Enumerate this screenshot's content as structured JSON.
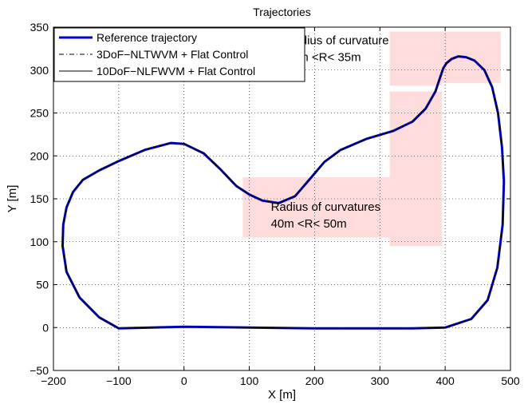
{
  "chart_data": {
    "type": "line",
    "title": "Trajectories",
    "xlabel": "X [m]",
    "ylabel": "Y [m]",
    "xlim": [
      -200,
      500
    ],
    "ylim": [
      -50,
      350
    ],
    "xticks": [
      -200,
      -100,
      0,
      100,
      200,
      300,
      400,
      500
    ],
    "yticks": [
      -50,
      0,
      50,
      100,
      150,
      200,
      250,
      300,
      350
    ],
    "xtick_labels": [
      "−200",
      "−100",
      "0",
      "100",
      "200",
      "300",
      "400",
      "500"
    ],
    "ytick_labels": [
      "−50",
      "0",
      "50",
      "100",
      "150",
      "200",
      "250",
      "300",
      "350"
    ],
    "grid": "dotted",
    "legend_position": "top-left",
    "series": [
      {
        "name": "Reference trajectory",
        "color": "#0000cc",
        "style": "solid-thick",
        "x": [
          300,
          200,
          100,
          0,
          -100,
          -130,
          -160,
          -180,
          -186,
          -185,
          -180,
          -170,
          -155,
          -130,
          -100,
          -60,
          -20,
          0,
          30,
          55,
          80,
          100,
          120,
          145,
          170,
          195,
          215,
          240,
          280,
          320,
          350,
          370,
          385,
          393,
          397,
          402,
          410,
          420,
          432,
          445,
          460,
          472,
          481,
          487,
          490,
          488,
          480,
          465,
          440,
          400,
          350,
          300
        ],
        "y": [
          -1,
          -1,
          0,
          1,
          -1,
          12,
          35,
          65,
          95,
          120,
          140,
          158,
          172,
          183,
          194,
          207,
          215,
          214,
          203,
          185,
          165,
          155,
          148,
          145,
          153,
          175,
          193,
          207,
          220,
          229,
          240,
          255,
          275,
          293,
          302,
          308,
          313,
          316,
          315,
          311,
          300,
          280,
          250,
          210,
          170,
          120,
          70,
          32,
          10,
          0,
          -1,
          -1
        ]
      },
      {
        "name": "3DoF−NLTWVM + Flat Control",
        "color": "#000000",
        "style": "dashdot",
        "x": [
          300,
          200,
          100,
          0,
          -100,
          -130,
          -160,
          -180,
          -186,
          -185,
          -180,
          -170,
          -155,
          -130,
          -100,
          -60,
          -20,
          0,
          30,
          55,
          80,
          100,
          120,
          145,
          170,
          195,
          215,
          240,
          280,
          320,
          350,
          370,
          385,
          393,
          397,
          402,
          410,
          420,
          432,
          445,
          460,
          472,
          481,
          487,
          490,
          488,
          480,
          465,
          440,
          400,
          350,
          300
        ],
        "y": [
          -1,
          -1,
          0,
          1,
          -1,
          12,
          35,
          65,
          95,
          120,
          140,
          158,
          172,
          183,
          194,
          207,
          215,
          214,
          203,
          185,
          165,
          155,
          148,
          145,
          153,
          175,
          193,
          207,
          220,
          229,
          240,
          255,
          275,
          293,
          302,
          308,
          313,
          316,
          315,
          311,
          300,
          280,
          250,
          210,
          170,
          120,
          70,
          32,
          10,
          0,
          -1,
          -1
        ]
      },
      {
        "name": "10DoF−NLFWVM + Flat Control",
        "color": "#000000",
        "style": "solid-thin",
        "x": [
          300,
          200,
          100,
          0,
          -100,
          -130,
          -160,
          -180,
          -186,
          -185,
          -180,
          -170,
          -155,
          -130,
          -100,
          -60,
          -20,
          0,
          30,
          55,
          80,
          100,
          120,
          145,
          170,
          195,
          215,
          240,
          280,
          320,
          350,
          370,
          385,
          393,
          397,
          402,
          410,
          420,
          432,
          445,
          460,
          472,
          481,
          487,
          490,
          488,
          480,
          465,
          440,
          400,
          350,
          300
        ],
        "y": [
          -1,
          -1,
          0,
          1,
          -1,
          12,
          35,
          65,
          95,
          120,
          140,
          158,
          172,
          183,
          194,
          207,
          215,
          214,
          203,
          185,
          165,
          155,
          148,
          145,
          153,
          175,
          193,
          207,
          220,
          229,
          240,
          255,
          275,
          293,
          302,
          308,
          313,
          316,
          315,
          311,
          300,
          280,
          250,
          210,
          170,
          120,
          70,
          32,
          10,
          0,
          -1,
          -1
        ]
      }
    ],
    "regions": [
      {
        "x": [
          90,
          315
        ],
        "y": [
          105,
          175
        ]
      },
      {
        "x": [
          315,
          395
        ],
        "y": [
          95,
          275
        ]
      },
      {
        "x": [
          395,
          485
        ],
        "y": [
          285,
          345
        ]
      },
      {
        "x": [
          315,
          395
        ],
        "y": [
          282,
          345
        ]
      }
    ],
    "region_color": "#ffd6d6",
    "annotations": [
      {
        "lines": [
          "Radius of curvatures",
          "40m <R< 50m"
        ],
        "x": 133,
        "y": 136
      },
      {
        "lines": [
          "Radius of curvature",
          "20m <R< 35m"
        ],
        "x": 155,
        "y": 330
      }
    ]
  }
}
